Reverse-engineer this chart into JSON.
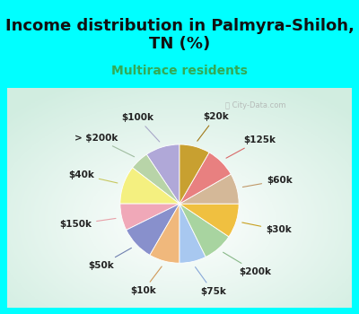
{
  "title": "Income distribution in Palmyra-Shiloh,\nTN (%)",
  "subtitle": "Multirace residents",
  "background_top": "#00FFFF",
  "background_chart_gradient": true,
  "labels": [
    "$100k",
    "> $200k",
    "$40k",
    "$150k",
    "$50k",
    "$10k",
    "$75k",
    "$200k",
    "$30k",
    "$60k",
    "$125k",
    "$20k"
  ],
  "values": [
    9,
    5,
    10,
    7,
    9,
    8,
    7,
    8,
    9,
    8,
    8,
    8
  ],
  "colors": [
    "#b0a8d8",
    "#b8d4a8",
    "#f4f080",
    "#f0a8b8",
    "#8890cc",
    "#f0b87c",
    "#a8c8f0",
    "#a8d4a0",
    "#f0c040",
    "#d4b898",
    "#e88080",
    "#c8a030"
  ],
  "startangle": 90,
  "title_fontsize": 13,
  "subtitle_fontsize": 10,
  "label_fontsize": 7.5,
  "line_colors": [
    "#a8a8c8",
    "#a0bca0",
    "#c8c860",
    "#e8a0a8",
    "#7080b0",
    "#d09858",
    "#88a8d8",
    "#88b888",
    "#c8a020",
    "#c09868",
    "#d86868",
    "#a07818"
  ]
}
